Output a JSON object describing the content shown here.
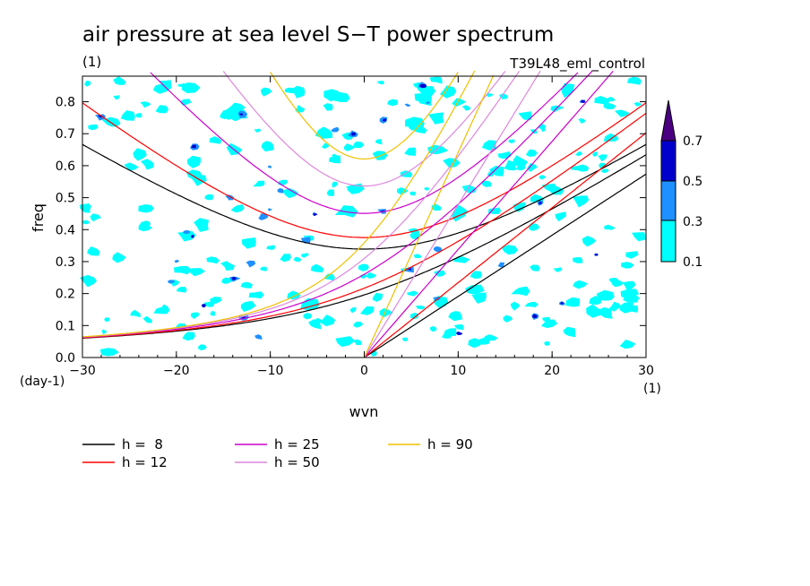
{
  "chart_data": {
    "type": "contour",
    "title": "air pressure at sea level S−T power spectrum",
    "units_label": "(1)",
    "experiment": "T39L48_eml_control",
    "xlabel": "wvn",
    "ylabel": "freq",
    "x_unit": "(1)",
    "y_unit": "(day-1)",
    "xlim": [
      -30,
      30
    ],
    "ylim": [
      0,
      0.88
    ],
    "xticks": [
      -30,
      -20,
      -10,
      0,
      10,
      20,
      30
    ],
    "yticks": [
      0.0,
      0.1,
      0.2,
      0.3,
      0.4,
      0.5,
      0.6,
      0.7,
      0.8
    ],
    "ytick_labels": [
      "0.0",
      "0.1",
      "0.2",
      "0.3",
      "0.4",
      "0.5",
      "0.6",
      "0.7",
      "0.8"
    ],
    "colorbar": {
      "levels": [
        "0.1",
        "0.3",
        "0.5",
        "0.7"
      ],
      "colors": [
        "#00ffff",
        "#1e90ff",
        "#0000cd",
        "#4b0082"
      ]
    },
    "dispersion_curves": [
      {
        "name": "h =  8",
        "h": 8,
        "color": "#000000"
      },
      {
        "name": "h = 12",
        "h": 12,
        "color": "#ff0000"
      },
      {
        "name": "h = 25",
        "h": 25,
        "color": "#cc00cc"
      },
      {
        "name": "h = 50",
        "h": 50,
        "color": "#dd88dd"
      },
      {
        "name": "h = 90",
        "h": 90,
        "color": "#f0c000"
      }
    ]
  }
}
